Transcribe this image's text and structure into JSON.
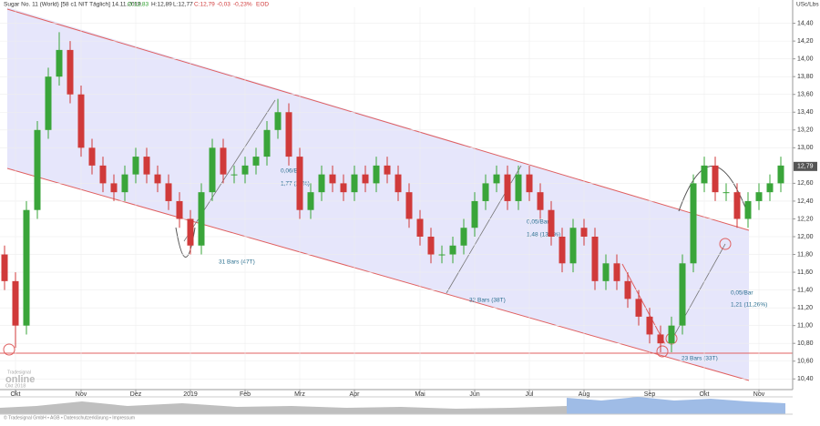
{
  "header": "Sugar No. 11 (World) [58 c1 NIT Täglich] 14.11.2019",
  "quote": {
    "open": "O:12,83",
    "high": "H:12,89",
    "low": "L:12,77",
    "close": "C:12,79",
    "change": "-0,03",
    "percent": "-0,23%",
    "source": "EOD"
  },
  "footer": "© Tradesignal GmbH • AGB • Datenschutzerklärung • Impressum",
  "logo": {
    "small": "Tradesignal",
    "big": "online",
    "start": "Okt 2018"
  },
  "annotations": [
    "0,06/Bar",
    "1,77 (14%)",
    "31 Bars (47T)",
    "32 Bars (38T)",
    "0,05/Bar",
    "1,48 (13,0%)",
    "0,05/Bar",
    "1,21 (11,26%)",
    "23 Bars (33T)"
  ],
  "chart_data": {
    "type": "candlestick",
    "y_label": "USc/Lbs",
    "last": {
      "value": 12.79,
      "label": "12,79"
    },
    "up_color": "#3aa53a",
    "down_color": "#d03a3a",
    "ylim": [
      10.28,
      14.58
    ],
    "yticks": [
      {
        "value": 14.4,
        "label": "14,40"
      },
      {
        "value": 14.2,
        "label": "14,20"
      },
      {
        "value": 14.0,
        "label": "14,00"
      },
      {
        "value": 13.8,
        "label": "13,80"
      },
      {
        "value": 13.6,
        "label": "13,60"
      },
      {
        "value": 13.4,
        "label": "13,40"
      },
      {
        "value": 13.2,
        "label": "13,20"
      },
      {
        "value": 13.0,
        "label": "13,00"
      },
      {
        "value": 12.6,
        "label": "12,60"
      },
      {
        "value": 12.4,
        "label": "12,40"
      },
      {
        "value": 12.2,
        "label": "12,20"
      },
      {
        "value": 12.0,
        "label": "12,00"
      },
      {
        "value": 11.8,
        "label": "11,80"
      },
      {
        "value": 11.6,
        "label": "11,60"
      },
      {
        "value": 11.4,
        "label": "11,40"
      },
      {
        "value": 11.2,
        "label": "11,20"
      },
      {
        "value": 11.0,
        "label": "11,00"
      },
      {
        "value": 10.8,
        "label": "10,80"
      },
      {
        "value": 10.6,
        "label": "10,60"
      },
      {
        "value": 10.4,
        "label": "10,40"
      }
    ],
    "xticks": [
      {
        "value": 1,
        "label": "Okt"
      },
      {
        "value": 7,
        "label": "Nov"
      },
      {
        "value": 12,
        "label": "Dez"
      },
      {
        "value": 17,
        "label": "2019"
      },
      {
        "value": 22,
        "label": "Feb"
      },
      {
        "value": 27,
        "label": "Mrz"
      },
      {
        "value": 32,
        "label": "Apr"
      },
      {
        "value": 38,
        "label": "Mai"
      },
      {
        "value": 43,
        "label": "Jun"
      },
      {
        "value": 48,
        "label": "Jul"
      },
      {
        "value": 53,
        "label": "Aug"
      },
      {
        "value": 59,
        "label": "Sep"
      },
      {
        "value": 64,
        "label": "Okt"
      },
      {
        "value": 69,
        "label": "Nov"
      }
    ],
    "grid": true,
    "open": [
      11.8,
      11.5,
      11.0,
      12.3,
      13.2,
      13.8,
      14.1,
      13.6,
      13.0,
      12.8,
      12.6,
      12.5,
      12.7,
      12.9,
      12.7,
      12.6,
      12.4,
      12.2,
      11.9,
      12.5,
      13.0,
      12.7,
      12.7,
      12.8,
      12.9,
      13.2,
      13.4,
      12.9,
      12.3,
      12.5,
      12.7,
      12.6,
      12.5,
      12.7,
      12.6,
      12.8,
      12.7,
      12.5,
      12.2,
      12.0,
      11.8,
      11.8,
      11.9,
      12.1,
      12.4,
      12.6,
      12.7,
      12.4,
      12.7,
      12.5,
      12.3,
      12.0,
      11.7,
      12.1,
      12.0,
      11.5,
      11.7,
      11.5,
      11.3,
      11.1,
      10.9,
      10.8,
      11.0,
      11.7,
      12.6,
      12.8,
      12.5,
      12.5,
      12.2,
      12.4,
      12.5,
      12.6
    ],
    "high": [
      11.9,
      11.6,
      12.4,
      13.3,
      13.9,
      14.3,
      14.2,
      13.7,
      13.1,
      12.9,
      12.7,
      12.8,
      13.0,
      13.0,
      12.8,
      12.7,
      12.5,
      12.3,
      12.6,
      13.1,
      13.1,
      12.8,
      12.9,
      13.0,
      13.3,
      13.55,
      13.5,
      13.0,
      12.6,
      12.8,
      12.8,
      12.7,
      12.8,
      12.8,
      12.9,
      12.9,
      12.8,
      12.6,
      12.3,
      12.1,
      11.9,
      12.0,
      12.2,
      12.5,
      12.7,
      12.8,
      12.8,
      12.8,
      12.8,
      12.6,
      12.4,
      12.1,
      12.2,
      12.2,
      12.1,
      11.8,
      11.8,
      11.6,
      11.4,
      11.2,
      11.0,
      11.1,
      11.8,
      12.7,
      12.9,
      12.9,
      12.6,
      12.6,
      12.5,
      12.6,
      12.7,
      12.9
    ],
    "low": [
      11.4,
      10.75,
      10.9,
      12.2,
      13.1,
      13.7,
      13.5,
      12.9,
      12.7,
      12.5,
      12.4,
      12.4,
      12.6,
      12.6,
      12.5,
      12.3,
      12.1,
      11.8,
      11.8,
      12.4,
      12.6,
      12.6,
      12.6,
      12.7,
      12.8,
      13.1,
      12.8,
      12.2,
      12.2,
      12.4,
      12.5,
      12.4,
      12.4,
      12.5,
      12.5,
      12.6,
      12.4,
      12.1,
      11.9,
      11.7,
      11.7,
      11.7,
      11.8,
      12.0,
      12.3,
      12.5,
      12.3,
      12.3,
      12.4,
      12.2,
      11.9,
      11.6,
      11.6,
      11.9,
      11.4,
      11.4,
      11.4,
      11.2,
      11.0,
      10.8,
      10.7,
      10.7,
      10.9,
      11.6,
      12.5,
      12.4,
      12.4,
      12.1,
      12.1,
      12.3,
      12.4,
      12.5
    ],
    "close": [
      11.5,
      11.0,
      12.3,
      13.2,
      13.8,
      14.1,
      13.6,
      13.0,
      12.8,
      12.6,
      12.5,
      12.7,
      12.9,
      12.7,
      12.6,
      12.4,
      12.2,
      11.9,
      12.5,
      13.0,
      12.7,
      12.7,
      12.8,
      12.9,
      13.2,
      13.4,
      12.9,
      12.3,
      12.5,
      12.7,
      12.6,
      12.5,
      12.7,
      12.6,
      12.8,
      12.7,
      12.5,
      12.2,
      12.0,
      11.8,
      11.8,
      11.9,
      12.1,
      12.4,
      12.6,
      12.7,
      12.4,
      12.7,
      12.5,
      12.3,
      12.0,
      11.7,
      12.1,
      12.0,
      11.5,
      11.7,
      11.5,
      11.3,
      11.1,
      10.9,
      10.8,
      11.0,
      11.7,
      12.6,
      12.8,
      12.5,
      12.5,
      12.2,
      12.4,
      12.5,
      12.6,
      12.8
    ]
  }
}
